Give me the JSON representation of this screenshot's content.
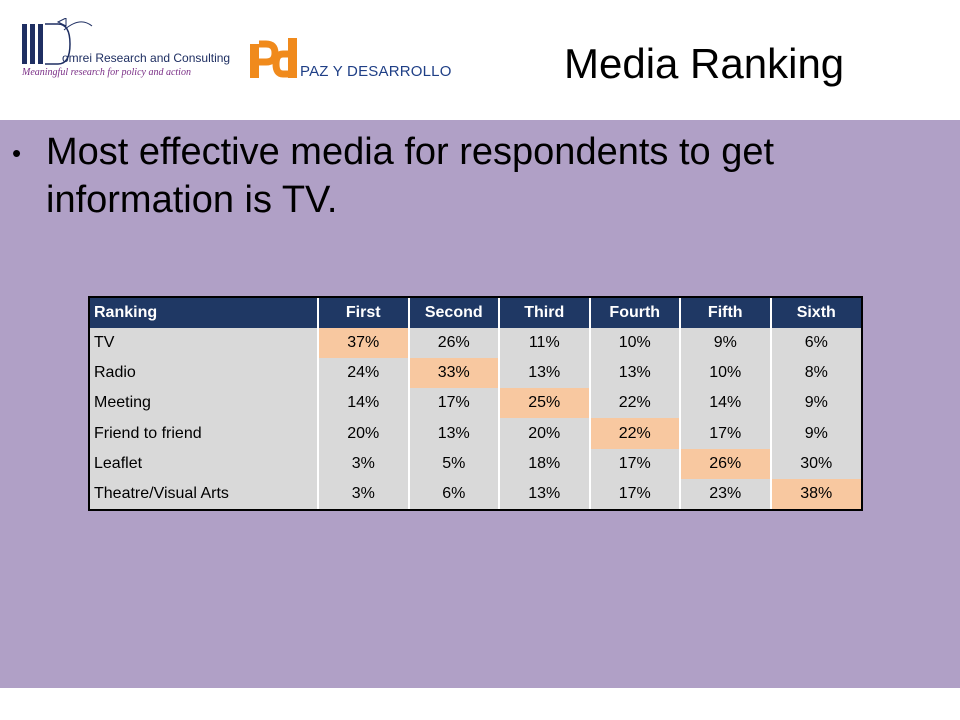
{
  "header": {
    "org1_name": "omrei Research and Consulting",
    "org1_tagline": "Meaningful research for policy and action",
    "org2_name": "PAZ Y DESARROLLO",
    "title": "Media Ranking"
  },
  "bullet": {
    "text": "Most effective media for respondents to get information is TV."
  },
  "table": {
    "headers": [
      "Ranking",
      "First",
      "Second",
      "Third",
      "Fourth",
      "Fifth",
      "Sixth"
    ],
    "rows": [
      {
        "label": "TV",
        "values": [
          "37%",
          "26%",
          "11%",
          "10%",
          "9%",
          "6%"
        ],
        "highlight": 0
      },
      {
        "label": "Radio",
        "values": [
          "24%",
          "33%",
          "13%",
          "13%",
          "10%",
          "8%"
        ],
        "highlight": 1
      },
      {
        "label": "Meeting",
        "values": [
          "14%",
          "17%",
          "25%",
          "22%",
          "14%",
          "9%"
        ],
        "highlight": 2
      },
      {
        "label": "Friend to friend",
        "values": [
          "20%",
          "13%",
          "20%",
          "22%",
          "17%",
          "9%"
        ],
        "highlight": 3
      },
      {
        "label": "Leaflet",
        "values": [
          "3%",
          "5%",
          "18%",
          "17%",
          "26%",
          "30%"
        ],
        "highlight": 4
      },
      {
        "label": "Theatre/Visual Arts",
        "values": [
          "3%",
          "6%",
          "13%",
          "17%",
          "23%",
          "38%"
        ],
        "highlight": 5
      }
    ],
    "colors": {
      "header_bg": "#1f3864",
      "cell_bg": "#d9d9d9",
      "highlight_bg": "#f8c8a0"
    }
  },
  "colors": {
    "slide_bg": "#b0a0c6",
    "domrei_blue": "#1f2f62",
    "pd_orange": "#f08a1c",
    "pd_blue": "#1f3f86"
  },
  "icons": [
    "domrei-logo-mark",
    "pd-logo-mark"
  ]
}
